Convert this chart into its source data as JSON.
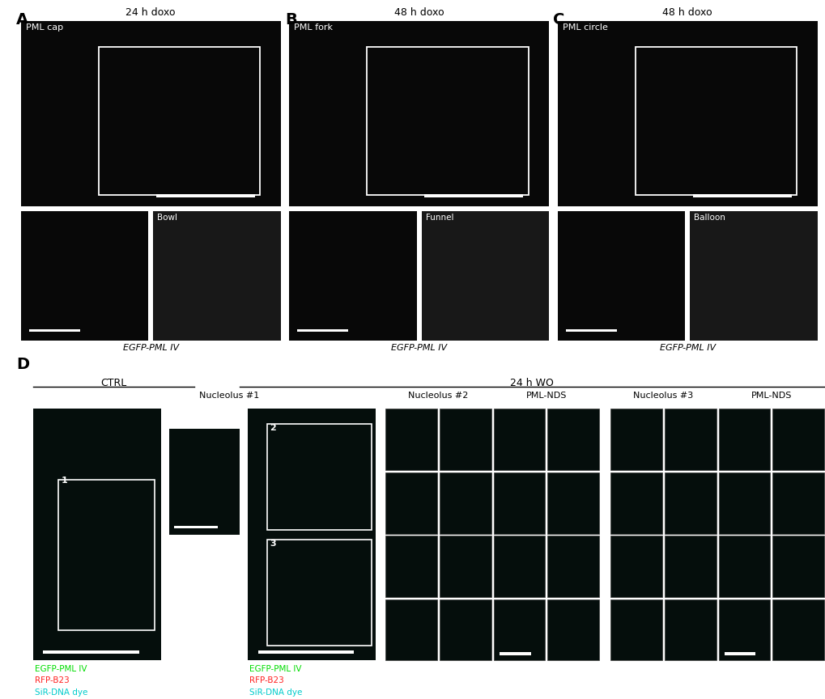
{
  "fig_width": 10.2,
  "fig_height": 8.64,
  "bg_color": "#ffffff",
  "panel_label_fontsize": 14,
  "panel_label_fontweight": "bold",
  "top_row": {
    "panels": [
      {
        "label": "A",
        "title": "24 h doxo",
        "subtitle": "PML cap",
        "bottom_label": "EGFP-PML IV",
        "label3d": "Bowl"
      },
      {
        "label": "B",
        "title": "48 h doxo",
        "subtitle": "PML fork",
        "bottom_label": "EGFP-PML IV",
        "label3d": "Funnel"
      },
      {
        "label": "C",
        "title": "48 h doxo",
        "subtitle": "PML circle",
        "bottom_label": "EGFP-PML IV",
        "label3d": "Balloon"
      }
    ]
  },
  "bottom_panel": {
    "label": "D",
    "ctrl_label": "CTRL",
    "wo_label": "24 h WO",
    "nucleolus1_label": "Nucleolus #1",
    "nucleolus2_label": "Nucleolus #2",
    "nucleolus3_label": "Nucleolus #3",
    "pml_nds_label": "PML-NDS",
    "legend_lines": [
      "EGFP-PML IV",
      "RFP-B23",
      "SiR-DNA dye"
    ],
    "legend_colors": [
      "#00dd00",
      "#ff2222",
      "#00cccc"
    ]
  },
  "colors": {
    "microscopy_bg_bw": "#080808",
    "microscopy_bg_color": "#050e0c",
    "bright_white": "#e0e0e0",
    "panel_border": "#444444"
  }
}
